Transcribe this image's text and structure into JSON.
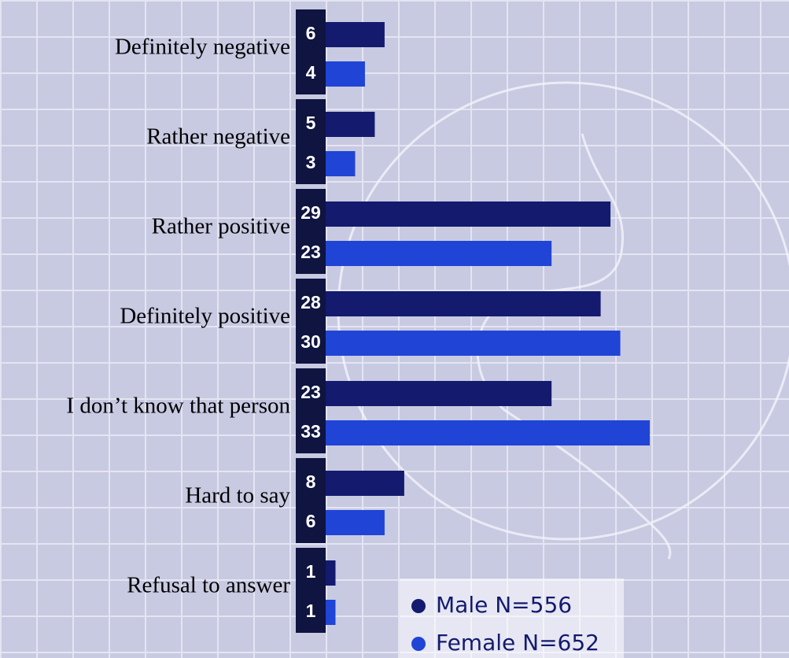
{
  "chart_data": {
    "type": "bar",
    "orientation": "horizontal",
    "categories": [
      "Definitely negative",
      "Rather negative",
      "Rather positive",
      "Definitely positive",
      "I don’t know that person",
      "Hard to say",
      "Refusal to answer"
    ],
    "series": [
      {
        "name": "Male N=556",
        "color": "#141a6e",
        "values": [
          6,
          5,
          29,
          28,
          23,
          8,
          1
        ]
      },
      {
        "name": "Female N=652",
        "color": "#1f44d6",
        "values": [
          4,
          3,
          23,
          30,
          33,
          6,
          1
        ]
      }
    ]
  }
}
